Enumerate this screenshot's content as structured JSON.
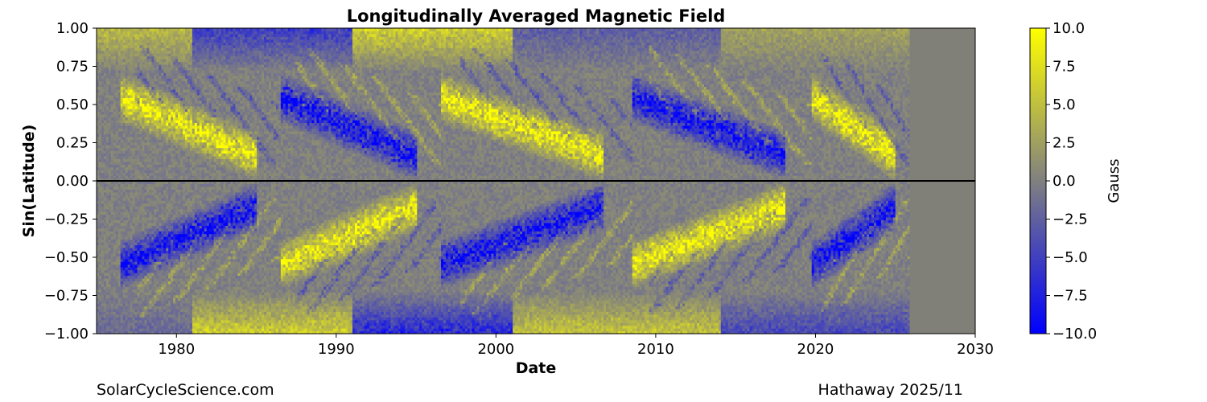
{
  "chart_data": {
    "type": "heatmap",
    "title": "Longitudinally Averaged Magnetic Field",
    "xlabel": "Date",
    "ylabel": "Sin(Latitude)",
    "xlim": [
      1975,
      2030
    ],
    "ylim": [
      -1.0,
      1.0
    ],
    "data_end": 2025.9,
    "no_data_color": "#808078",
    "x_ticks": [
      {
        "value": 1980,
        "label": "1980"
      },
      {
        "value": 1990,
        "label": "1990"
      },
      {
        "value": 2000,
        "label": "2000"
      },
      {
        "value": 2010,
        "label": "2010"
      },
      {
        "value": 2020,
        "label": "2020"
      },
      {
        "value": 2030,
        "label": "2030"
      }
    ],
    "y_ticks": [
      {
        "value": 1.0,
        "label": "1.00"
      },
      {
        "value": 0.75,
        "label": "0.75"
      },
      {
        "value": 0.5,
        "label": "0.50"
      },
      {
        "value": 0.25,
        "label": "0.25"
      },
      {
        "value": 0.0,
        "label": "0.00"
      },
      {
        "value": -0.25,
        "label": "−0.25"
      },
      {
        "value": -0.5,
        "label": "−0.50"
      },
      {
        "value": -0.75,
        "label": "−0.75"
      },
      {
        "value": -1.0,
        "label": "−1.00"
      }
    ],
    "equator_line": 0.0,
    "colorbar": {
      "label": "Gauss",
      "range": [
        -10,
        10
      ],
      "colors": [
        "#0000ff",
        "#808080",
        "#ffff00"
      ],
      "ticks": [
        {
          "value": 10,
          "label": "10.0"
        },
        {
          "value": 7.5,
          "label": "7.5"
        },
        {
          "value": 5,
          "label": "5.0"
        },
        {
          "value": 2.5,
          "label": "2.5"
        },
        {
          "value": 0,
          "label": "0.0"
        },
        {
          "value": -2.5,
          "label": "−2.5"
        },
        {
          "value": -5,
          "label": "−5.0"
        },
        {
          "value": -7.5,
          "label": "−7.5"
        },
        {
          "value": -10,
          "label": "−10.0"
        }
      ]
    },
    "active_bands": [
      {
        "start": 1976.5,
        "end": 1986.5,
        "north_sign": 1,
        "south_sign": -1
      },
      {
        "start": 1986.5,
        "end": 1996.5,
        "north_sign": -1,
        "south_sign": 1
      },
      {
        "start": 1996.5,
        "end": 2008.5,
        "north_sign": 1,
        "south_sign": -1
      },
      {
        "start": 2008.5,
        "end": 2019.8,
        "north_sign": -1,
        "south_sign": 1
      },
      {
        "start": 2019.8,
        "end": 2025.9,
        "north_sign": 1,
        "south_sign": -1
      }
    ],
    "polar_fields": [
      {
        "start": 1975.0,
        "end": 1981.0,
        "north": 5,
        "south": -2
      },
      {
        "start": 1981.0,
        "end": 1991.0,
        "north": -6,
        "south": 7
      },
      {
        "start": 1991.0,
        "end": 2001.0,
        "north": 7,
        "south": -8
      },
      {
        "start": 2001.0,
        "end": 2014.0,
        "north": -3,
        "south": 6
      },
      {
        "start": 2014.0,
        "end": 2025.9,
        "north": 3,
        "south": -5
      }
    ]
  },
  "credits": {
    "left": "SolarCycleScience.com",
    "right": "Hathaway 2025/11"
  }
}
